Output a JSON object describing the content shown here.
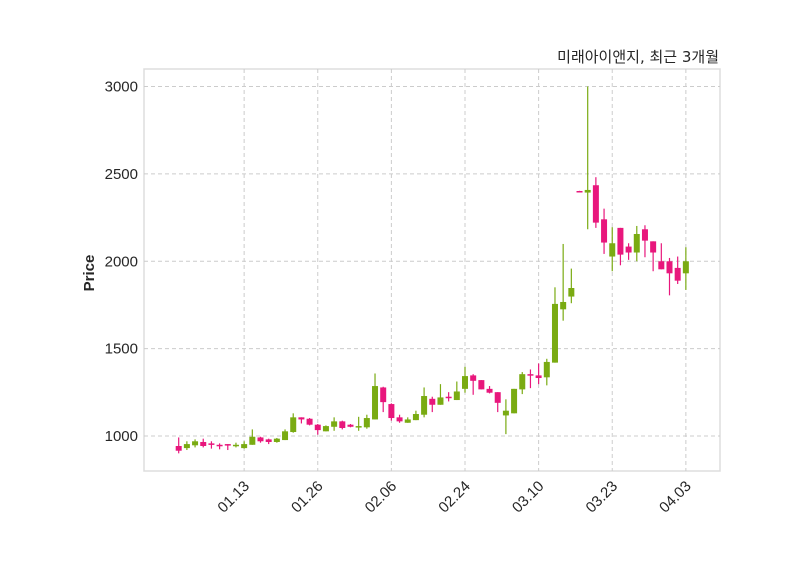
{
  "chart_data": {
    "type": "candlestick",
    "title": "미래아이앤지, 최근 3개월",
    "xlabel": "",
    "ylabel": "Price",
    "ylim": [
      800,
      3100
    ],
    "yticks": [
      1000,
      1500,
      2000,
      2500,
      3000
    ],
    "xticks": [
      {
        "index": 8,
        "label": "01.13"
      },
      {
        "index": 17,
        "label": "01.26"
      },
      {
        "index": 26,
        "label": "02.06"
      },
      {
        "index": 35,
        "label": "02.24"
      },
      {
        "index": 44,
        "label": "03.10"
      },
      {
        "index": 53,
        "label": "03.23"
      },
      {
        "index": 62,
        "label": "04.03"
      }
    ],
    "grid": true,
    "colors": {
      "up": "#7aab12",
      "down": "#e8177c",
      "grid": "#cccccc",
      "frame": "#dddddd"
    },
    "ohlc": [
      [
        943,
        992,
        901,
        916
      ],
      [
        931,
        970,
        920,
        954
      ],
      [
        947,
        981,
        935,
        970
      ],
      [
        966,
        985,
        935,
        943
      ],
      [
        958,
        970,
        928,
        950
      ],
      [
        950,
        958,
        924,
        947
      ],
      [
        954,
        954,
        920,
        947
      ],
      [
        943,
        962,
        935,
        950
      ],
      [
        931,
        970,
        928,
        954
      ],
      [
        950,
        1038,
        950,
        996
      ],
      [
        992,
        996,
        962,
        970
      ],
      [
        981,
        985,
        954,
        966
      ],
      [
        966,
        989,
        962,
        985
      ],
      [
        977,
        1038,
        977,
        1027
      ],
      [
        1023,
        1130,
        1019,
        1107
      ],
      [
        1107,
        1107,
        1072,
        1095
      ],
      [
        1099,
        1103,
        1061,
        1065
      ],
      [
        1065,
        1069,
        1008,
        1034
      ],
      [
        1027,
        1061,
        1027,
        1057
      ],
      [
        1053,
        1107,
        1030,
        1084
      ],
      [
        1084,
        1088,
        1038,
        1046
      ],
      [
        1065,
        1069,
        1050,
        1053
      ],
      [
        1053,
        1110,
        1030,
        1057
      ],
      [
        1050,
        1122,
        1042,
        1103
      ],
      [
        1095,
        1358,
        1095,
        1286
      ],
      [
        1278,
        1282,
        1137,
        1194
      ],
      [
        1183,
        1187,
        1088,
        1103
      ],
      [
        1107,
        1122,
        1076,
        1084
      ],
      [
        1076,
        1107,
        1076,
        1095
      ],
      [
        1091,
        1145,
        1091,
        1126
      ],
      [
        1122,
        1278,
        1107,
        1229
      ],
      [
        1213,
        1225,
        1137,
        1179
      ],
      [
        1179,
        1297,
        1179,
        1221
      ],
      [
        1225,
        1251,
        1198,
        1221
      ],
      [
        1206,
        1312,
        1206,
        1255
      ],
      [
        1270,
        1396,
        1248,
        1343
      ],
      [
        1347,
        1354,
        1236,
        1316
      ],
      [
        1320,
        1320,
        1267,
        1267
      ],
      [
        1270,
        1286,
        1244,
        1248
      ],
      [
        1251,
        1251,
        1137,
        1190
      ],
      [
        1118,
        1210,
        1011,
        1145
      ],
      [
        1130,
        1270,
        1130,
        1270
      ],
      [
        1267,
        1366,
        1240,
        1354
      ],
      [
        1354,
        1381,
        1274,
        1350
      ],
      [
        1347,
        1415,
        1297,
        1332
      ],
      [
        1336,
        1442,
        1290,
        1424
      ],
      [
        1420,
        1851,
        1420,
        1756
      ],
      [
        1725,
        2099,
        1660,
        1767
      ],
      [
        1798,
        1958,
        1760,
        1847
      ],
      [
        2402,
        2403,
        2398,
        2399
      ],
      [
        2393,
        3000,
        2183,
        2408
      ],
      [
        2435,
        2481,
        2191,
        2221
      ],
      [
        2240,
        2301,
        2042,
        2107
      ],
      [
        2027,
        2195,
        1943,
        2103
      ],
      [
        2191,
        2191,
        1977,
        2038
      ],
      [
        2084,
        2103,
        2008,
        2050
      ],
      [
        2050,
        2202,
        2000,
        2156
      ],
      [
        2183,
        2206,
        2023,
        2118
      ],
      [
        2114,
        2114,
        1943,
        2050
      ],
      [
        2000,
        2103,
        1954,
        1954
      ],
      [
        2000,
        2019,
        1805,
        1931
      ],
      [
        1962,
        2027,
        1870,
        1889
      ],
      [
        1931,
        2080,
        1836,
        2000
      ]
    ]
  }
}
